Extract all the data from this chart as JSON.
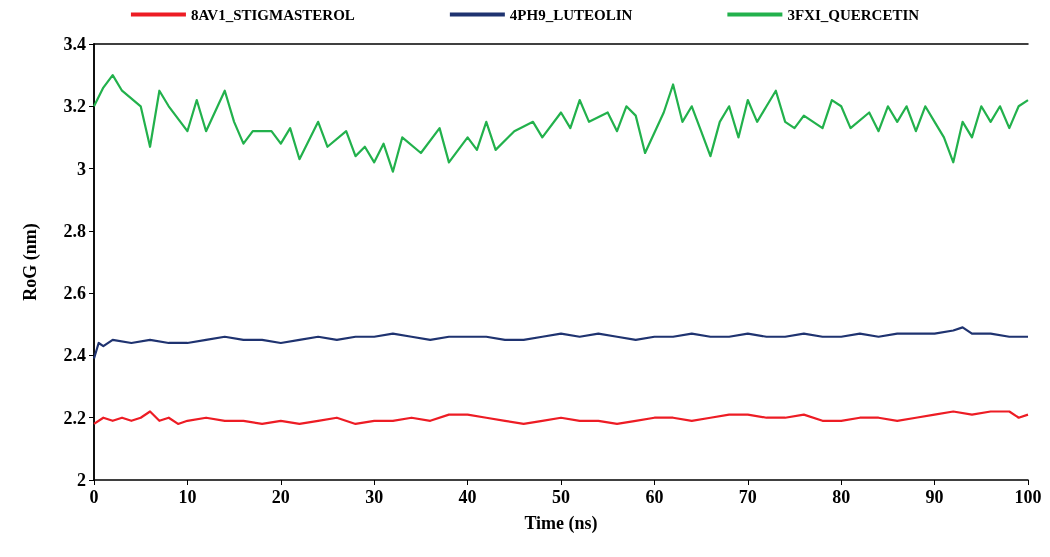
{
  "chart_data": {
    "type": "line",
    "xlabel": "Time (ns)",
    "ylabel": "RoG (nm)",
    "xlim": [
      0,
      100
    ],
    "xticks": [
      0,
      10,
      20,
      30,
      40,
      50,
      60,
      70,
      80,
      90,
      100
    ],
    "ylim": [
      2,
      3.4
    ],
    "yticks": [
      2,
      2.2,
      2.4,
      2.6,
      2.8,
      3,
      3.2,
      3.4
    ],
    "grid": false,
    "legend": "top",
    "marker": "none",
    "line_style": "solid",
    "series": [
      {
        "name": "8AV1_STIGMASTEROL",
        "color": "#ed1c24",
        "x": [
          0,
          1,
          2,
          3,
          4,
          5,
          6,
          7,
          8,
          9,
          10,
          12,
          14,
          16,
          18,
          20,
          22,
          24,
          26,
          28,
          30,
          32,
          34,
          36,
          38,
          40,
          42,
          44,
          46,
          48,
          50,
          52,
          54,
          56,
          58,
          60,
          62,
          64,
          66,
          68,
          70,
          72,
          74,
          76,
          78,
          80,
          82,
          84,
          86,
          88,
          90,
          92,
          94,
          96,
          98,
          99,
          100
        ],
        "values": [
          2.18,
          2.2,
          2.19,
          2.2,
          2.19,
          2.2,
          2.22,
          2.19,
          2.2,
          2.18,
          2.19,
          2.2,
          2.19,
          2.19,
          2.18,
          2.19,
          2.18,
          2.19,
          2.2,
          2.18,
          2.19,
          2.19,
          2.2,
          2.19,
          2.21,
          2.21,
          2.2,
          2.19,
          2.18,
          2.19,
          2.2,
          2.19,
          2.19,
          2.18,
          2.19,
          2.2,
          2.2,
          2.19,
          2.2,
          2.21,
          2.21,
          2.2,
          2.2,
          2.21,
          2.19,
          2.19,
          2.2,
          2.2,
          2.19,
          2.2,
          2.21,
          2.22,
          2.21,
          2.22,
          2.22,
          2.2,
          2.21
        ]
      },
      {
        "name": "4PH9_LUTEOLIN",
        "color": "#1f3370",
        "x": [
          0,
          0.5,
          1,
          2,
          4,
          6,
          8,
          10,
          12,
          14,
          16,
          18,
          20,
          22,
          24,
          26,
          28,
          30,
          32,
          34,
          36,
          38,
          40,
          42,
          44,
          46,
          48,
          50,
          52,
          54,
          56,
          58,
          60,
          62,
          64,
          66,
          68,
          70,
          72,
          74,
          76,
          78,
          80,
          82,
          84,
          86,
          88,
          90,
          92,
          93,
          94,
          96,
          98,
          100
        ],
        "values": [
          2.39,
          2.44,
          2.43,
          2.45,
          2.44,
          2.45,
          2.44,
          2.44,
          2.45,
          2.46,
          2.45,
          2.45,
          2.44,
          2.45,
          2.46,
          2.45,
          2.46,
          2.46,
          2.47,
          2.46,
          2.45,
          2.46,
          2.46,
          2.46,
          2.45,
          2.45,
          2.46,
          2.47,
          2.46,
          2.47,
          2.46,
          2.45,
          2.46,
          2.46,
          2.47,
          2.46,
          2.46,
          2.47,
          2.46,
          2.46,
          2.47,
          2.46,
          2.46,
          2.47,
          2.46,
          2.47,
          2.47,
          2.47,
          2.48,
          2.49,
          2.47,
          2.47,
          2.46,
          2.46
        ]
      },
      {
        "name": "3FXI_QUERCETIN",
        "color": "#22b14c",
        "x": [
          0,
          1,
          2,
          3,
          5,
          6,
          7,
          8,
          10,
          11,
          12,
          14,
          15,
          16,
          17,
          19,
          20,
          21,
          22,
          24,
          25,
          27,
          28,
          29,
          30,
          31,
          32,
          33,
          35,
          37,
          38,
          40,
          41,
          42,
          43,
          45,
          47,
          48,
          50,
          51,
          52,
          53,
          55,
          56,
          57,
          58,
          59,
          61,
          62,
          63,
          64,
          65,
          66,
          67,
          68,
          69,
          70,
          71,
          72,
          73,
          74,
          75,
          76,
          78,
          79,
          80,
          81,
          83,
          84,
          85,
          86,
          87,
          88,
          89,
          90,
          91,
          92,
          93,
          94,
          95,
          96,
          97,
          98,
          99,
          100
        ],
        "values": [
          3.2,
          3.26,
          3.3,
          3.25,
          3.2,
          3.07,
          3.25,
          3.2,
          3.12,
          3.22,
          3.12,
          3.25,
          3.15,
          3.08,
          3.12,
          3.12,
          3.08,
          3.13,
          3.03,
          3.15,
          3.07,
          3.12,
          3.04,
          3.07,
          3.02,
          3.08,
          2.99,
          3.1,
          3.05,
          3.13,
          3.02,
          3.1,
          3.06,
          3.15,
          3.06,
          3.12,
          3.15,
          3.1,
          3.18,
          3.13,
          3.22,
          3.15,
          3.18,
          3.12,
          3.2,
          3.17,
          3.05,
          3.18,
          3.27,
          3.15,
          3.2,
          3.12,
          3.04,
          3.15,
          3.2,
          3.1,
          3.22,
          3.15,
          3.2,
          3.25,
          3.15,
          3.13,
          3.17,
          3.13,
          3.22,
          3.2,
          3.13,
          3.18,
          3.12,
          3.2,
          3.15,
          3.2,
          3.12,
          3.2,
          3.15,
          3.1,
          3.02,
          3.15,
          3.1,
          3.2,
          3.15,
          3.2,
          3.13,
          3.2,
          3.22
        ]
      }
    ]
  }
}
